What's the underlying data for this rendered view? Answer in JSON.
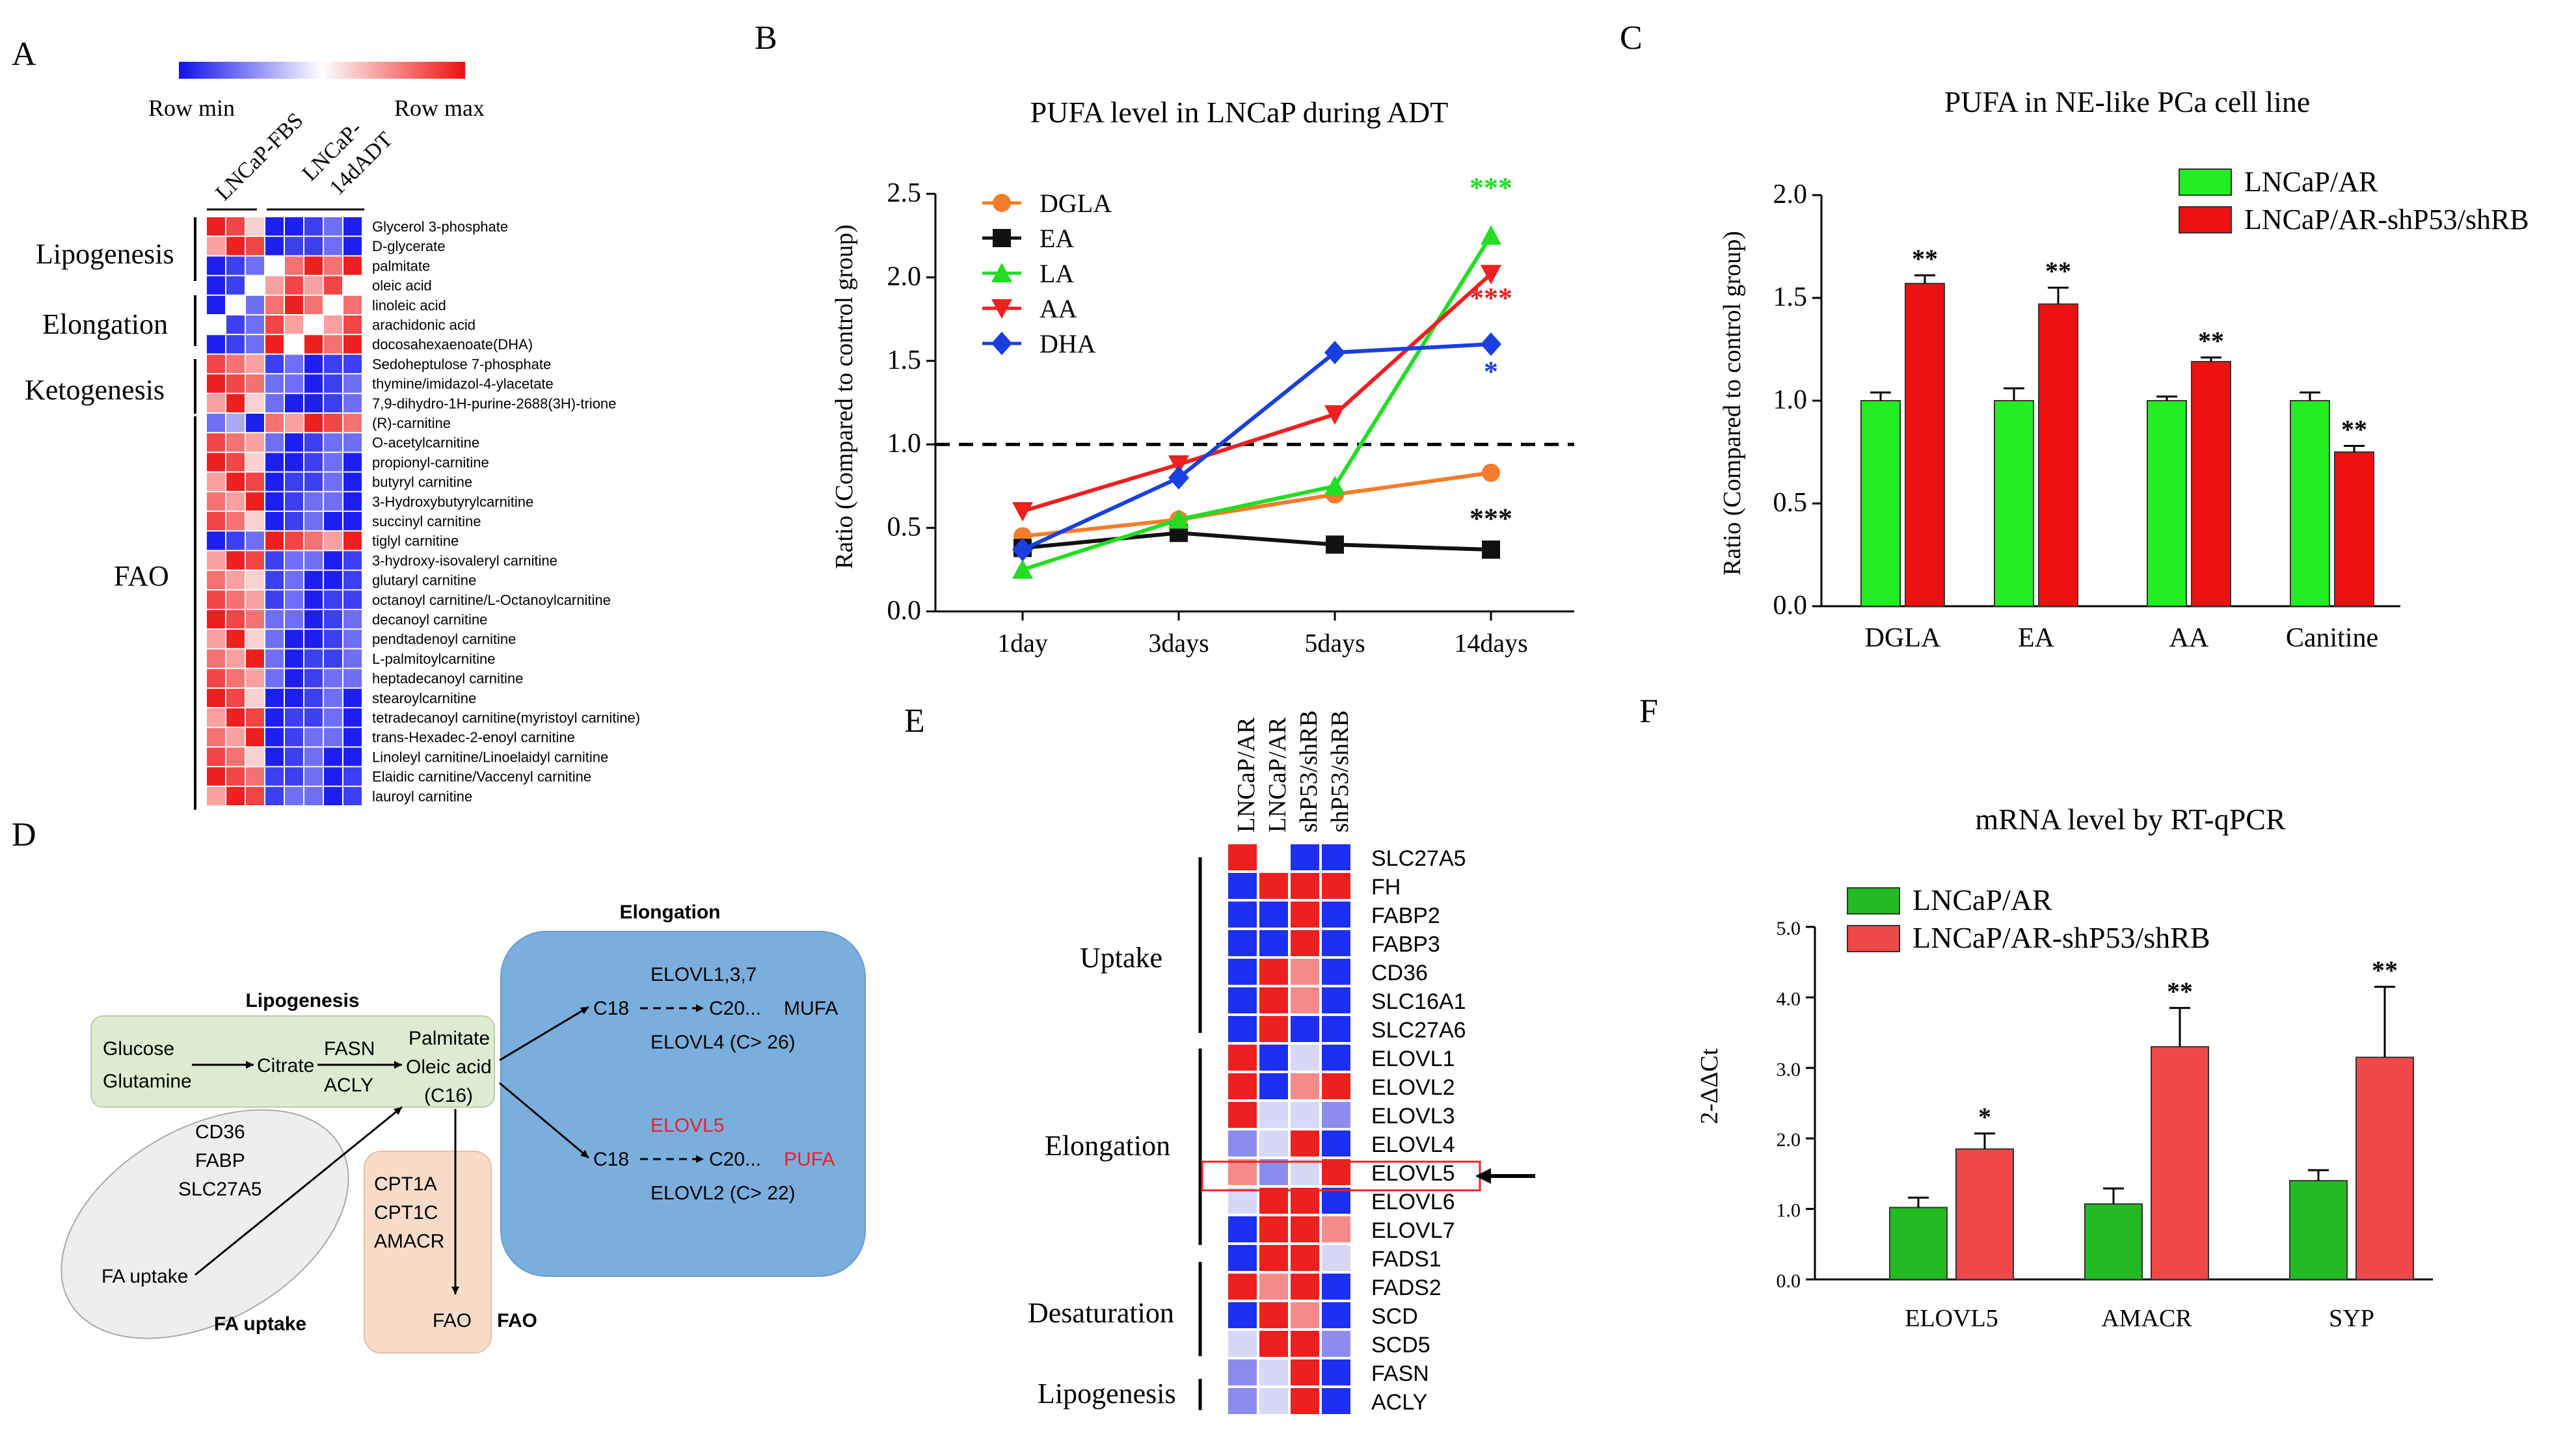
{
  "panel_letters": {
    "a": "A",
    "b": "B",
    "c": "C",
    "d": "D",
    "e": "E",
    "f": "F"
  },
  "panel_a": {
    "scale_min": "Row min",
    "scale_max": "Row max",
    "col_labels": [
      "LNCaP-FBS",
      "LNCaP-",
      "14dADT"
    ],
    "groups": [
      "Lipogenesis",
      "Elongation",
      "Ketogenesis",
      "FAO"
    ],
    "rows": [
      "Glycerol 3-phosphate",
      "D-glycerate",
      "palmitate",
      "oleic acid",
      "linoleic acid",
      "arachidonic acid",
      "docosahexaenoate(DHA)",
      "Sedoheptulose 7-phosphate",
      "thymine/imidazol-4-ylacetate",
      "7,9-dihydro-1H-purine-2688(3H)-trione",
      "(R)-carnitine",
      "O-acetylcarnitine",
      "propionyl-carnitine",
      "butyryl carnitine",
      "3-Hydroxybutyrylcarnitine",
      "succinyl carnitine",
      "tiglyl carnitine",
      "3-hydroxy-isovaleryl carnitine",
      "glutaryl carnitine",
      "octanoyl carnitine/L-Octanoylcarnitine",
      "decanoyl carnitine",
      "pendtadenoyl carnitine",
      "L-palmitoylcarnitine",
      "heptadecanoyl carnitine",
      "stearoylcarnitine",
      "tetradecanoyl carnitine(myristoyl carnitine)",
      "trans-Hexadec-2-enoyl carnitine",
      "Linoleyl carnitine/Linoelaidyl carnitine",
      "Elaidic carnitine/Vaccenyl carnitine",
      "lauroyl carnitine"
    ]
  },
  "panel_d": {
    "lipogenesis_title": "Lipogenesis",
    "elongation_title": "Elongation",
    "fa_uptake_title": "FA uptake",
    "fao_title": "FAO",
    "glucose": "Glucose",
    "glutamine": "Glutamine",
    "citrate": "Citrate",
    "fasn": "FASN",
    "acly": "ACLY",
    "palmitate": "Palmitate",
    "oleic": "Oleic acid",
    "c16": "(C16)",
    "elovl137": "ELOVL1,3,7",
    "c18a": "C18",
    "c20a": "C20...",
    "mufa": "MUFA",
    "elovl4": "ELOVL4 (C> 26)",
    "elovl5": "ELOVL5",
    "c18b": "C18",
    "c20b": "C20...",
    "pufa": "PUFA",
    "elovl2": "ELOVL2 (C> 22)",
    "cd36": "CD36",
    "fabp": "FABP",
    "slc27a5": "SLC27A5",
    "fa_uptake": "FA uptake",
    "cpt1a": "CPT1A",
    "cpt1c": "CPT1C",
    "amacr": "AMACR",
    "fao": "FAO",
    "pufa_color": "#e8202a"
  },
  "panel_e": {
    "col_labels": [
      "LNCaP/AR",
      "LNCaP/AR",
      "shP53/shRB",
      "shP53/shRB"
    ],
    "groups": [
      "Uptake",
      "Elongation",
      "Desaturation",
      "Lipogenesis"
    ],
    "genes": [
      "SLC27A5",
      "FH",
      "FABP2",
      "FABP3",
      "CD36",
      "SLC16A1",
      "SLC27A6",
      "ELOVL1",
      "ELOVL2",
      "ELOVL3",
      "ELOVL4",
      "ELOVL5",
      "ELOVL6",
      "ELOVL7",
      "FADS1",
      "FADS2",
      "SCD",
      "SCD5",
      "FASN",
      "ACLY"
    ]
  },
  "chart_data": [
    {
      "id": "B",
      "type": "line",
      "title": "PUFA level  in LNCaP during  ADT",
      "ylabel": "Ratio (Compared to control group)",
      "xlabel": "",
      "categories": [
        "1day",
        "3days",
        "5days",
        "14days"
      ],
      "ylim": [
        0,
        2.5
      ],
      "yticks": [
        "0.0",
        "0.5",
        "1.0",
        "1.5",
        "2.0",
        "2.5"
      ],
      "reference_line": 1.0,
      "legend_position": "top-left",
      "series": [
        {
          "name": "DGLA",
          "color": "#f47c2a",
          "marker": "circle",
          "values": [
            0.45,
            0.55,
            0.7,
            0.83
          ]
        },
        {
          "name": "EA",
          "color": "#111111",
          "marker": "square",
          "values": [
            0.38,
            0.47,
            0.4,
            0.37
          ]
        },
        {
          "name": "LA",
          "color": "#22dd22",
          "marker": "triangle",
          "values": [
            0.25,
            0.55,
            0.75,
            2.25
          ]
        },
        {
          "name": "AA",
          "color": "#ee2020",
          "marker": "triangle-down",
          "values": [
            0.6,
            0.88,
            1.18,
            2.02
          ]
        },
        {
          "name": "DHA",
          "color": "#1a3fe0",
          "marker": "diamond",
          "values": [
            0.37,
            0.8,
            1.55,
            1.6
          ]
        }
      ],
      "annotations": [
        {
          "text": "***",
          "color": "#22dd22",
          "y": 2.48
        },
        {
          "text": "***",
          "color": "#ee2020",
          "y": 1.82
        },
        {
          "text": "*",
          "color": "#1a3fe0",
          "y": 1.38
        },
        {
          "text": "***",
          "color": "#111111",
          "y": 0.5
        }
      ]
    },
    {
      "id": "C",
      "type": "bar",
      "title": "PUFA in NE-like  PCa cell  line",
      "ylabel": "Ratio (Compared to control group)",
      "xlabel": "",
      "categories": [
        "DGLA",
        "EA",
        "AA",
        "Canitine"
      ],
      "ylim": [
        0,
        2.0
      ],
      "yticks": [
        "0.0",
        "0.5",
        "1.0",
        "1.5",
        "2.0"
      ],
      "legend_position": "top-right",
      "series": [
        {
          "name": "LNCaP/AR",
          "color": "#22ee22",
          "values": [
            1.0,
            1.0,
            1.0,
            1.0
          ],
          "errors": [
            0.04,
            0.06,
            0.02,
            0.04
          ]
        },
        {
          "name": "LNCaP/AR-shP53/shRB",
          "color": "#ee1111",
          "values": [
            1.57,
            1.47,
            1.19,
            0.75
          ],
          "errors": [
            0.04,
            0.08,
            0.02,
            0.03
          ]
        }
      ],
      "significance": [
        "**",
        "**",
        "**",
        "**"
      ]
    },
    {
      "id": "F",
      "type": "bar",
      "title": "mRNA level  by RT-qPCR",
      "ylabel": "2-ΔΔCt",
      "xlabel": "",
      "categories": [
        "ELOVL5",
        "AMACR",
        "SYP"
      ],
      "ylim": [
        0,
        5.0
      ],
      "yticks": [
        "0.0",
        "1.0",
        "2.0",
        "3.0",
        "4.0",
        "5.0"
      ],
      "legend_position": "top-left",
      "series": [
        {
          "name": "LNCaP/AR",
          "color": "#22bb22",
          "values": [
            1.02,
            1.07,
            1.4
          ],
          "errors": [
            0.14,
            0.22,
            0.15
          ]
        },
        {
          "name": "LNCaP/AR-shP53/shRB",
          "color": "#f04848",
          "values": [
            1.85,
            3.3,
            3.15
          ],
          "errors": [
            0.22,
            0.55,
            1.0
          ]
        }
      ],
      "significance": [
        "*",
        "**",
        "**"
      ]
    }
  ]
}
